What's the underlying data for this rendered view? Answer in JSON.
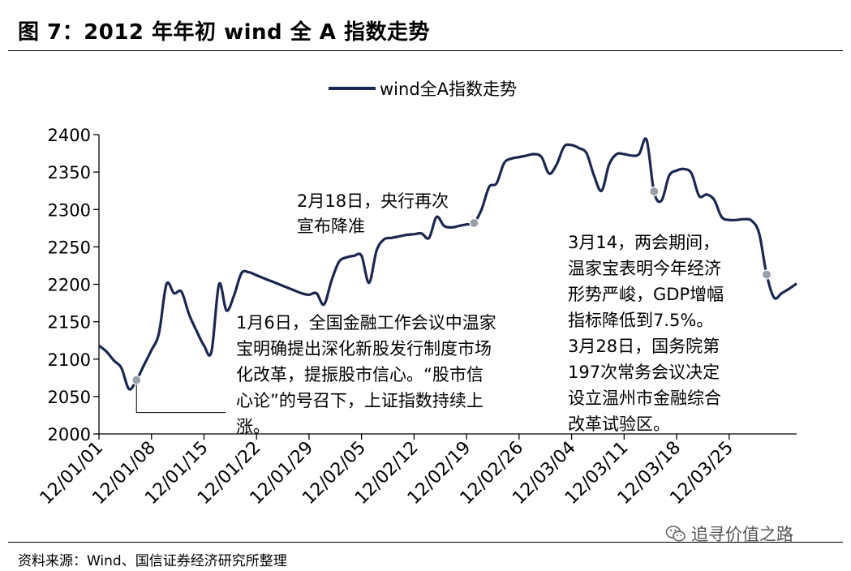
{
  "figure": {
    "title": "图 7：2012 年年初 wind 全 A 指数走势",
    "source": "资料来源：Wind、国信证券经济研究所整理",
    "watermark": "追寻价值之路"
  },
  "colors": {
    "line": "#1a2750",
    "marker": "#9aa0a8",
    "leader": "#000000"
  },
  "chart_data": {
    "type": "line",
    "x_tick_labels": [
      "12/01/01",
      "12/01/08",
      "12/01/15",
      "12/01/22",
      "12/01/29",
      "12/02/05",
      "12/02/12",
      "12/02/19",
      "12/02/26",
      "12/03/04",
      "12/03/11",
      "12/03/18",
      "12/03/25"
    ],
    "ylim": [
      2000,
      2400
    ],
    "y_ticks": [
      2000,
      2050,
      2100,
      2150,
      2200,
      2250,
      2300,
      2350,
      2400
    ],
    "legend": "top-center",
    "series": [
      {
        "name": "wind全A指数走势",
        "points": [
          {
            "x": "12/01/01",
            "y": 2118
          },
          {
            "x": "12/01/02",
            "y": 2110
          },
          {
            "x": "12/01/03",
            "y": 2098
          },
          {
            "x": "12/01/04",
            "y": 2088
          },
          {
            "x": "12/01/05",
            "y": 2060
          },
          {
            "x": "12/01/06",
            "y": 2072
          },
          {
            "x": "12/01/07",
            "y": 2092
          },
          {
            "x": "12/01/08",
            "y": 2112
          },
          {
            "x": "12/01/09",
            "y": 2135
          },
          {
            "x": "12/01/10",
            "y": 2200
          },
          {
            "x": "12/01/11",
            "y": 2188
          },
          {
            "x": "12/01/12",
            "y": 2190
          },
          {
            "x": "12/01/13",
            "y": 2160
          },
          {
            "x": "12/01/14",
            "y": 2138
          },
          {
            "x": "12/01/15",
            "y": 2118
          },
          {
            "x": "12/01/16",
            "y": 2110
          },
          {
            "x": "12/01/17",
            "y": 2200
          },
          {
            "x": "12/01/18",
            "y": 2165
          },
          {
            "x": "12/01/19",
            "y": 2185
          },
          {
            "x": "12/01/20",
            "y": 2215
          },
          {
            "x": "12/01/21",
            "y": 2216
          },
          {
            "x": "12/01/22",
            "y": 2212
          },
          {
            "x": "12/01/23",
            "y": 2208
          },
          {
            "x": "12/01/24",
            "y": 2204
          },
          {
            "x": "12/01/25",
            "y": 2200
          },
          {
            "x": "12/01/26",
            "y": 2196
          },
          {
            "x": "12/01/27",
            "y": 2192
          },
          {
            "x": "12/01/28",
            "y": 2188
          },
          {
            "x": "12/01/29",
            "y": 2186
          },
          {
            "x": "12/01/30",
            "y": 2188
          },
          {
            "x": "12/01/31",
            "y": 2173
          },
          {
            "x": "12/02/01",
            "y": 2205
          },
          {
            "x": "12/02/02",
            "y": 2230
          },
          {
            "x": "12/02/03",
            "y": 2236
          },
          {
            "x": "12/02/04",
            "y": 2238
          },
          {
            "x": "12/02/05",
            "y": 2238
          },
          {
            "x": "12/02/06",
            "y": 2202
          },
          {
            "x": "12/02/07",
            "y": 2245
          },
          {
            "x": "12/02/08",
            "y": 2260
          },
          {
            "x": "12/02/09",
            "y": 2262
          },
          {
            "x": "12/02/10",
            "y": 2264
          },
          {
            "x": "12/02/11",
            "y": 2266
          },
          {
            "x": "12/02/12",
            "y": 2267
          },
          {
            "x": "12/02/13",
            "y": 2268
          },
          {
            "x": "12/02/14",
            "y": 2262
          },
          {
            "x": "12/02/15",
            "y": 2290
          },
          {
            "x": "12/02/16",
            "y": 2278
          },
          {
            "x": "12/02/17",
            "y": 2276
          },
          {
            "x": "12/02/18",
            "y": 2278
          },
          {
            "x": "12/02/19",
            "y": 2280
          },
          {
            "x": "12/02/20",
            "y": 2282
          },
          {
            "x": "12/02/21",
            "y": 2300
          },
          {
            "x": "12/02/22",
            "y": 2330
          },
          {
            "x": "12/02/23",
            "y": 2335
          },
          {
            "x": "12/02/24",
            "y": 2362
          },
          {
            "x": "12/02/25",
            "y": 2368
          },
          {
            "x": "12/02/26",
            "y": 2370
          },
          {
            "x": "12/02/27",
            "y": 2372
          },
          {
            "x": "12/02/28",
            "y": 2374
          },
          {
            "x": "12/02/29",
            "y": 2370
          },
          {
            "x": "12/03/01",
            "y": 2348
          },
          {
            "x": "12/03/02",
            "y": 2360
          },
          {
            "x": "12/03/03",
            "y": 2384
          },
          {
            "x": "12/03/04",
            "y": 2386
          },
          {
            "x": "12/03/05",
            "y": 2382
          },
          {
            "x": "12/03/06",
            "y": 2375
          },
          {
            "x": "12/03/07",
            "y": 2345
          },
          {
            "x": "12/03/08",
            "y": 2325
          },
          {
            "x": "12/03/09",
            "y": 2360
          },
          {
            "x": "12/03/10",
            "y": 2374
          },
          {
            "x": "12/03/11",
            "y": 2374
          },
          {
            "x": "12/03/12",
            "y": 2372
          },
          {
            "x": "12/03/13",
            "y": 2374
          },
          {
            "x": "12/03/14",
            "y": 2393
          },
          {
            "x": "12/03/15",
            "y": 2323
          },
          {
            "x": "12/03/16",
            "y": 2312
          },
          {
            "x": "12/03/17",
            "y": 2345
          },
          {
            "x": "12/03/18",
            "y": 2352
          },
          {
            "x": "12/03/19",
            "y": 2354
          },
          {
            "x": "12/03/20",
            "y": 2348
          },
          {
            "x": "12/03/21",
            "y": 2318
          },
          {
            "x": "12/03/22",
            "y": 2320
          },
          {
            "x": "12/03/23",
            "y": 2313
          },
          {
            "x": "12/03/24",
            "y": 2290
          },
          {
            "x": "12/03/25",
            "y": 2286
          },
          {
            "x": "12/03/26",
            "y": 2286
          },
          {
            "x": "12/03/27",
            "y": 2287
          },
          {
            "x": "12/03/28",
            "y": 2285
          },
          {
            "x": "12/03/29",
            "y": 2268
          },
          {
            "x": "12/03/30",
            "y": 2213
          },
          {
            "x": "12/03/31",
            "y": 2182
          },
          {
            "x": "12/04/01",
            "y": 2188
          },
          {
            "x": "12/04/02",
            "y": 2194
          },
          {
            "x": "12/04/03",
            "y": 2201
          }
        ]
      }
    ],
    "markers": [
      {
        "x": "12/01/06",
        "y": 2072
      },
      {
        "x": "12/02/20",
        "y": 2282
      },
      {
        "x": "12/03/15",
        "y": 2324
      },
      {
        "x": "12/03/30",
        "y": 2213
      }
    ],
    "annotations": [
      {
        "id": "a1",
        "lines": [
          "1月6日，全国金融工作会议中温家",
          "宝明确提出深化新股发行制度市场",
          "化改革，提振股市信心。“股市信",
          "心论”的号召下，上证指数持续上",
          "涨。"
        ]
      },
      {
        "id": "a2",
        "lines": [
          "2月18日，央行再次",
          "宣布降准"
        ]
      },
      {
        "id": "a3",
        "lines": [
          "3月14，两会期间，",
          "温家宝表明今年经济",
          "形势严峻，GDP增幅",
          "指标降低到7.5%。",
          "3月28日，国务院第",
          "197次常务会议决定",
          "设立温州市金融综合",
          "改革试验区。"
        ]
      }
    ]
  }
}
